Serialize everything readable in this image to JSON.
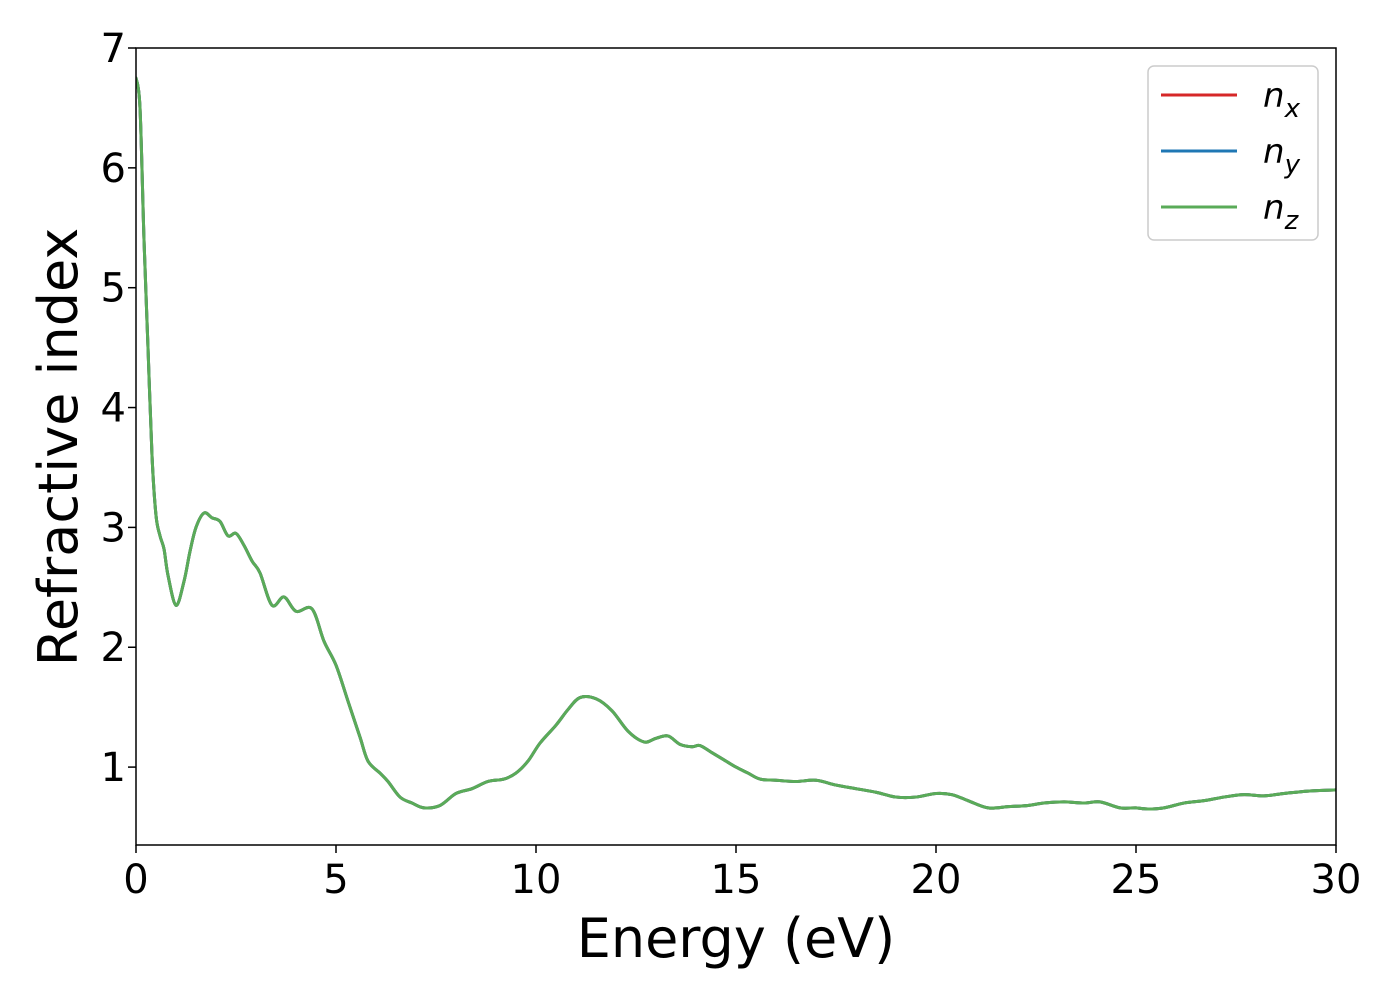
{
  "chart_data": {
    "type": "line",
    "title": "",
    "xlabel": "Energy (eV)",
    "ylabel": "Refractive index",
    "xlim": [
      0,
      30
    ],
    "ylim": [
      0.35,
      7.0
    ],
    "xticks": [
      0,
      5,
      10,
      15,
      20,
      25,
      30
    ],
    "xtick_labels": [
      "0",
      "5",
      "10",
      "15",
      "20",
      "25",
      "30"
    ],
    "yticks": [
      1,
      2,
      3,
      4,
      5,
      6,
      7
    ],
    "ytick_labels": [
      "1",
      "2",
      "3",
      "4",
      "5",
      "6",
      "7"
    ],
    "grid": false,
    "legend_position": "top-right",
    "series": [
      {
        "name": "n_x",
        "legend_base": "n",
        "legend_sub": "x",
        "color": "#d62728",
        "x": [
          0,
          0.1,
          0.2,
          0.3,
          0.4,
          0.5,
          0.6,
          0.7,
          0.8,
          1.0,
          1.2,
          1.35,
          1.5,
          1.7,
          1.9,
          2.1,
          2.3,
          2.5,
          2.7,
          2.9,
          3.1,
          3.4,
          3.7,
          4.0,
          4.4,
          4.7,
          5.0,
          5.3,
          5.6,
          5.8,
          6.1,
          6.3,
          6.6,
          6.9,
          7.2,
          7.6,
          8.0,
          8.4,
          8.8,
          9.2,
          9.5,
          9.8,
          10.1,
          10.5,
          10.8,
          11.1,
          11.5,
          11.9,
          12.3,
          12.7,
          13.0,
          13.3,
          13.6,
          13.9,
          14.1,
          14.4,
          14.7,
          15.0,
          15.3,
          15.6,
          16.0,
          16.5,
          17.0,
          17.5,
          18.0,
          18.5,
          19.0,
          19.5,
          20.0,
          20.4,
          20.8,
          21.3,
          21.8,
          22.3,
          22.7,
          23.2,
          23.7,
          24.1,
          24.6,
          25.0,
          25.3,
          25.7,
          26.2,
          26.7,
          27.2,
          27.7,
          28.2,
          28.7,
          29.3,
          30.0
        ],
        "y": [
          6.75,
          6.5,
          5.4,
          4.5,
          3.6,
          3.1,
          2.93,
          2.82,
          2.6,
          2.35,
          2.55,
          2.8,
          3.0,
          3.12,
          3.08,
          3.05,
          2.93,
          2.95,
          2.85,
          2.72,
          2.62,
          2.35,
          2.42,
          2.3,
          2.32,
          2.05,
          1.85,
          1.55,
          1.25,
          1.05,
          0.95,
          0.88,
          0.75,
          0.7,
          0.66,
          0.68,
          0.78,
          0.82,
          0.88,
          0.9,
          0.95,
          1.05,
          1.2,
          1.35,
          1.48,
          1.58,
          1.57,
          1.47,
          1.3,
          1.21,
          1.24,
          1.26,
          1.19,
          1.17,
          1.18,
          1.12,
          1.06,
          1.0,
          0.95,
          0.9,
          0.89,
          0.88,
          0.89,
          0.85,
          0.82,
          0.79,
          0.75,
          0.75,
          0.78,
          0.77,
          0.72,
          0.66,
          0.67,
          0.68,
          0.7,
          0.71,
          0.7,
          0.71,
          0.66,
          0.66,
          0.65,
          0.66,
          0.7,
          0.72,
          0.75,
          0.77,
          0.76,
          0.78,
          0.8,
          0.81
        ]
      },
      {
        "name": "n_y",
        "legend_base": "n",
        "legend_sub": "y",
        "color": "#1f77b4",
        "x": [
          0,
          0.1,
          0.2,
          0.3,
          0.4,
          0.5,
          0.6,
          0.7,
          0.8,
          1.0,
          1.2,
          1.35,
          1.5,
          1.7,
          1.9,
          2.1,
          2.3,
          2.5,
          2.7,
          2.9,
          3.1,
          3.4,
          3.7,
          4.0,
          4.4,
          4.7,
          5.0,
          5.3,
          5.6,
          5.8,
          6.1,
          6.3,
          6.6,
          6.9,
          7.2,
          7.6,
          8.0,
          8.4,
          8.8,
          9.2,
          9.5,
          9.8,
          10.1,
          10.5,
          10.8,
          11.1,
          11.5,
          11.9,
          12.3,
          12.7,
          13.0,
          13.3,
          13.6,
          13.9,
          14.1,
          14.4,
          14.7,
          15.0,
          15.3,
          15.6,
          16.0,
          16.5,
          17.0,
          17.5,
          18.0,
          18.5,
          19.0,
          19.5,
          20.0,
          20.4,
          20.8,
          21.3,
          21.8,
          22.3,
          22.7,
          23.2,
          23.7,
          24.1,
          24.6,
          25.0,
          25.3,
          25.7,
          26.2,
          26.7,
          27.2,
          27.7,
          28.2,
          28.7,
          29.3,
          30.0
        ],
        "y": [
          6.75,
          6.5,
          5.4,
          4.5,
          3.6,
          3.1,
          2.93,
          2.82,
          2.6,
          2.35,
          2.55,
          2.8,
          3.0,
          3.12,
          3.08,
          3.05,
          2.93,
          2.95,
          2.85,
          2.72,
          2.62,
          2.35,
          2.42,
          2.3,
          2.32,
          2.05,
          1.85,
          1.55,
          1.25,
          1.05,
          0.95,
          0.88,
          0.75,
          0.7,
          0.66,
          0.68,
          0.78,
          0.82,
          0.88,
          0.9,
          0.95,
          1.05,
          1.2,
          1.35,
          1.48,
          1.58,
          1.57,
          1.47,
          1.3,
          1.21,
          1.24,
          1.26,
          1.19,
          1.17,
          1.18,
          1.12,
          1.06,
          1.0,
          0.95,
          0.9,
          0.89,
          0.88,
          0.89,
          0.85,
          0.82,
          0.79,
          0.75,
          0.75,
          0.78,
          0.77,
          0.72,
          0.66,
          0.67,
          0.68,
          0.7,
          0.71,
          0.7,
          0.71,
          0.66,
          0.66,
          0.65,
          0.66,
          0.7,
          0.72,
          0.75,
          0.77,
          0.76,
          0.78,
          0.8,
          0.81
        ]
      },
      {
        "name": "n_z",
        "legend_base": "n",
        "legend_sub": "z",
        "color": "#5aab58",
        "x": [
          0,
          0.1,
          0.2,
          0.3,
          0.4,
          0.5,
          0.6,
          0.7,
          0.8,
          1.0,
          1.2,
          1.35,
          1.5,
          1.7,
          1.9,
          2.1,
          2.3,
          2.5,
          2.7,
          2.9,
          3.1,
          3.4,
          3.7,
          4.0,
          4.4,
          4.7,
          5.0,
          5.3,
          5.6,
          5.8,
          6.1,
          6.3,
          6.6,
          6.9,
          7.2,
          7.6,
          8.0,
          8.4,
          8.8,
          9.2,
          9.5,
          9.8,
          10.1,
          10.5,
          10.8,
          11.1,
          11.5,
          11.9,
          12.3,
          12.7,
          13.0,
          13.3,
          13.6,
          13.9,
          14.1,
          14.4,
          14.7,
          15.0,
          15.3,
          15.6,
          16.0,
          16.5,
          17.0,
          17.5,
          18.0,
          18.5,
          19.0,
          19.5,
          20.0,
          20.4,
          20.8,
          21.3,
          21.8,
          22.3,
          22.7,
          23.2,
          23.7,
          24.1,
          24.6,
          25.0,
          25.3,
          25.7,
          26.2,
          26.7,
          27.2,
          27.7,
          28.2,
          28.7,
          29.3,
          30.0
        ],
        "y": [
          6.75,
          6.5,
          5.4,
          4.5,
          3.6,
          3.1,
          2.93,
          2.82,
          2.6,
          2.35,
          2.55,
          2.8,
          3.0,
          3.12,
          3.08,
          3.05,
          2.93,
          2.95,
          2.85,
          2.72,
          2.62,
          2.35,
          2.42,
          2.3,
          2.32,
          2.05,
          1.85,
          1.55,
          1.25,
          1.05,
          0.95,
          0.88,
          0.75,
          0.7,
          0.66,
          0.68,
          0.78,
          0.82,
          0.88,
          0.9,
          0.95,
          1.05,
          1.2,
          1.35,
          1.48,
          1.58,
          1.57,
          1.47,
          1.3,
          1.21,
          1.24,
          1.26,
          1.19,
          1.17,
          1.18,
          1.12,
          1.06,
          1.0,
          0.95,
          0.9,
          0.89,
          0.88,
          0.89,
          0.85,
          0.82,
          0.79,
          0.75,
          0.75,
          0.78,
          0.77,
          0.72,
          0.66,
          0.67,
          0.68,
          0.7,
          0.71,
          0.7,
          0.71,
          0.66,
          0.66,
          0.65,
          0.66,
          0.7,
          0.72,
          0.75,
          0.77,
          0.76,
          0.78,
          0.8,
          0.81
        ]
      }
    ]
  }
}
